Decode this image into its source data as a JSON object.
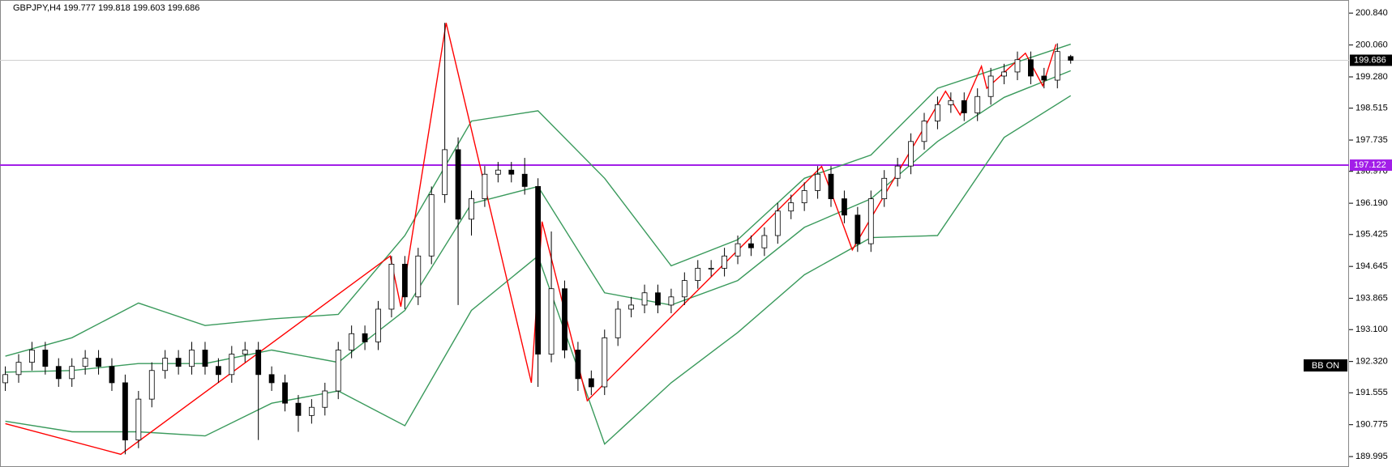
{
  "chart_data": {
    "type": "candlestick",
    "title": "GBPJPY,H4  199.777 199.818 199.603 199.686",
    "badge": "BB ON",
    "xlim": [
      -0.4,
      100.9
    ],
    "ylim": [
      189.74,
      201.16
    ],
    "yticks": [
      {
        "value": 200.84,
        "label": "200.840"
      },
      {
        "value": 200.06,
        "label": "200.060"
      },
      {
        "value": 199.28,
        "label": "199.280"
      },
      198.515,
      197.735,
      {
        "value": 196.97,
        "label": "196.970"
      },
      {
        "value": 196.19,
        "label": "196.190"
      },
      195.425,
      194.645,
      193.865,
      {
        "value": 193.1,
        "label": "193.100"
      },
      {
        "value": 192.32,
        "label": "192.320"
      },
      191.555,
      190.775,
      189.995
    ],
    "bull_color": "#ffffff",
    "bear_color": "#000000",
    "candles": {
      "open": [
        191.8,
        192.0,
        192.3,
        192.6,
        192.2,
        191.9,
        192.2,
        192.4,
        192.2,
        191.8,
        190.4,
        191.4,
        192.1,
        192.4,
        192.2,
        192.6,
        192.2,
        192.0,
        192.5,
        192.6,
        192.0,
        191.8,
        191.3,
        191.0,
        191.2,
        191.6,
        192.6,
        193.0,
        192.8,
        193.6,
        194.7,
        193.9,
        194.9,
        196.4,
        197.5,
        195.8,
        196.3,
        196.9,
        197.0,
        196.9,
        196.6,
        192.5,
        194.1,
        192.6,
        191.9,
        191.7,
        192.9,
        193.6,
        193.7,
        194.0,
        193.7,
        193.9,
        194.3,
        194.6,
        194.6,
        194.9,
        195.2,
        195.1,
        195.4,
        196.0,
        196.2,
        196.5,
        196.9,
        196.3,
        195.9,
        195.2,
        196.3,
        196.8,
        197.1,
        197.7,
        198.2,
        198.6,
        198.7,
        198.4,
        198.8,
        199.3,
        199.4,
        199.7,
        199.3,
        199.2,
        199.777
      ],
      "high": [
        192.2,
        192.5,
        192.8,
        192.8,
        192.4,
        192.4,
        192.6,
        192.6,
        192.4,
        192.0,
        191.6,
        192.3,
        192.6,
        192.6,
        192.8,
        192.8,
        192.4,
        192.7,
        192.8,
        192.8,
        192.2,
        192.0,
        191.5,
        191.4,
        191.8,
        192.8,
        193.2,
        193.2,
        193.8,
        194.9,
        194.9,
        195.1,
        196.6,
        200.6,
        197.8,
        196.5,
        197.1,
        197.2,
        197.2,
        197.3,
        196.8,
        195.5,
        194.3,
        192.8,
        192.1,
        193.1,
        193.8,
        193.9,
        194.2,
        194.2,
        194.1,
        194.5,
        194.8,
        194.8,
        195.1,
        195.4,
        195.4,
        195.6,
        196.2,
        196.4,
        196.7,
        197.1,
        197.1,
        196.5,
        196.1,
        196.5,
        197.0,
        197.3,
        197.9,
        198.4,
        198.8,
        198.9,
        198.9,
        199.0,
        199.5,
        199.6,
        199.9,
        199.9,
        199.5,
        200.1,
        199.818
      ],
      "low": [
        191.6,
        191.8,
        192.1,
        192.0,
        191.7,
        191.7,
        192.0,
        192.0,
        191.6,
        190.05,
        190.2,
        191.2,
        191.9,
        192.0,
        192.0,
        192.0,
        191.8,
        191.8,
        192.3,
        190.4,
        191.6,
        191.1,
        190.6,
        190.8,
        191.0,
        191.4,
        192.4,
        192.6,
        192.6,
        193.4,
        193.6,
        193.7,
        194.7,
        196.2,
        193.7,
        195.4,
        196.1,
        196.7,
        196.7,
        196.4,
        191.7,
        192.3,
        192.4,
        191.6,
        191.5,
        191.5,
        192.7,
        193.4,
        193.5,
        193.5,
        193.5,
        193.7,
        194.1,
        194.4,
        194.4,
        194.7,
        194.9,
        194.9,
        195.2,
        195.8,
        196.0,
        196.3,
        196.1,
        195.7,
        195.0,
        195.0,
        196.1,
        196.6,
        196.9,
        197.5,
        198.0,
        198.4,
        198.2,
        198.2,
        198.6,
        199.1,
        199.2,
        199.1,
        199.0,
        199.0,
        199.603
      ],
      "close": [
        192.0,
        192.3,
        192.6,
        192.2,
        191.9,
        192.2,
        192.4,
        192.2,
        191.8,
        190.4,
        191.4,
        192.1,
        192.4,
        192.2,
        192.6,
        192.2,
        192.0,
        192.5,
        192.6,
        192.0,
        191.8,
        191.3,
        191.0,
        191.2,
        191.6,
        192.6,
        193.0,
        192.8,
        193.6,
        194.7,
        193.9,
        194.9,
        196.4,
        197.5,
        195.8,
        196.3,
        196.9,
        197.0,
        196.9,
        196.6,
        192.5,
        194.1,
        192.6,
        191.9,
        191.7,
        192.9,
        193.6,
        193.7,
        194.0,
        193.7,
        193.9,
        194.3,
        194.6,
        194.6,
        194.9,
        195.2,
        195.1,
        195.4,
        196.0,
        196.2,
        196.5,
        196.9,
        196.3,
        195.9,
        195.2,
        196.3,
        196.8,
        197.1,
        197.7,
        198.2,
        198.6,
        198.7,
        198.4,
        198.8,
        199.3,
        199.4,
        199.7,
        199.3,
        199.2,
        199.9,
        199.686
      ]
    },
    "series": [
      {
        "color": "#3a9a5c",
        "x": [
          0,
          5,
          10,
          15,
          20,
          25,
          30,
          35,
          40,
          45,
          50,
          55,
          60,
          65,
          70,
          75,
          80
        ],
        "values": [
          192.45,
          192.9,
          193.75,
          193.2,
          193.36,
          193.47,
          195.4,
          198.2,
          198.45,
          196.8,
          194.66,
          195.3,
          196.8,
          197.37,
          199.0,
          199.54,
          200.08
        ]
      },
      {
        "color": "#3a9a5c",
        "x": [
          0,
          5,
          10,
          15,
          20,
          25,
          30,
          35,
          40,
          45,
          50,
          55,
          60,
          65,
          70,
          75,
          80
        ],
        "values": [
          192.06,
          192.1,
          192.27,
          192.27,
          192.6,
          192.3,
          193.57,
          196.18,
          196.6,
          194.0,
          193.7,
          194.3,
          195.6,
          196.3,
          197.7,
          198.78,
          199.43
        ]
      },
      {
        "color": "#3a9a5c",
        "x": [
          0,
          5,
          10,
          15,
          20,
          25,
          30,
          35,
          40,
          45,
          50,
          55,
          60,
          65,
          70,
          75,
          80
        ],
        "values": [
          190.86,
          190.6,
          190.6,
          190.5,
          191.3,
          191.6,
          190.75,
          193.57,
          194.9,
          190.3,
          191.8,
          193.03,
          194.44,
          195.35,
          195.4,
          197.8,
          198.82
        ]
      },
      {
        "color": "#ff0000",
        "x": [
          0,
          8.67,
          28.9,
          29.7,
          33.1,
          39.5,
          40.3,
          43.7,
          61.3,
          63.6,
          70.6,
          71.7,
          73.3,
          73.7,
          76.6,
          77.9,
          78.9
        ],
        "values": [
          190.8,
          190.05,
          194.9,
          193.66,
          200.6,
          191.8,
          195.74,
          191.36,
          197.09,
          195.05,
          198.93,
          198.35,
          199.54,
          199.0,
          199.86,
          199.06,
          200.08
        ]
      }
    ],
    "price_lines": [
      {
        "value": 197.122,
        "color": "#a21ee8",
        "label_color": "#a21ee8"
      },
      {
        "value": 199.686,
        "color": "#d0d0d0",
        "label_color": "#000000"
      }
    ]
  }
}
